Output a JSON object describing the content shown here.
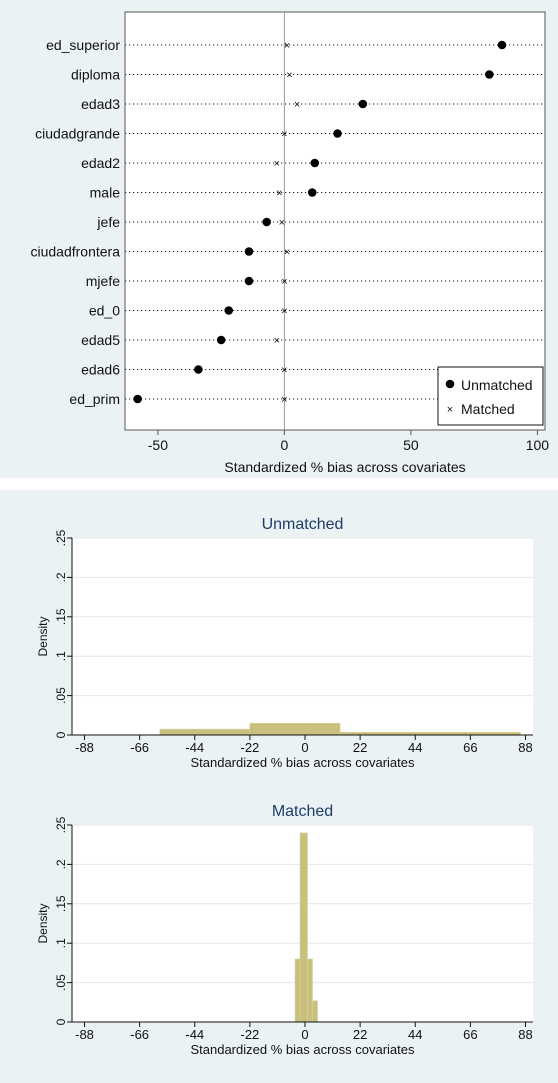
{
  "chart_data": [
    {
      "type": "scatter",
      "subtype": "dot-plot",
      "xlabel": "Standardized % bias across covariates",
      "ylabel": "",
      "xlim": [
        -63,
        103
      ],
      "xticks": [
        "-50",
        "0",
        "50",
        "100"
      ],
      "reference_line_x": 0,
      "categories": [
        "ed_superior",
        "diploma",
        "edad3",
        "ciudadgrande",
        "edad2",
        "male",
        "jefe",
        "ciudadfrontera",
        "mjefe",
        "ed_0",
        "edad5",
        "edad6",
        "ed_prim"
      ],
      "series": [
        {
          "name": "Unmatched",
          "marker": "filled-circle",
          "values": [
            86,
            81,
            31,
            21,
            12,
            11,
            -7,
            -14,
            -14,
            -22,
            -25,
            -34,
            -58
          ]
        },
        {
          "name": "Matched",
          "marker": "x",
          "values": [
            1,
            2,
            5,
            0,
            -3,
            -2,
            -1,
            1,
            0,
            0,
            -3,
            0,
            0
          ]
        }
      ],
      "legend_position": "bottom-right",
      "grid": "dotted horizontal lines"
    },
    {
      "type": "bar",
      "subtype": "histogram",
      "title": "Unmatched",
      "xlabel": "Standardized % bias across covariates",
      "ylabel": "Density",
      "xlim": [
        -93,
        91
      ],
      "ylim": [
        0,
        0.25
      ],
      "xticks": [
        "-88",
        "-66",
        "-44",
        "-22",
        "0",
        "22",
        "44",
        "66",
        "88"
      ],
      "yticks": [
        "0",
        ".05",
        ".1",
        ".15",
        ".2",
        ".25"
      ],
      "bins": [
        {
          "from": -58,
          "to": -22,
          "density": 0.0075
        },
        {
          "from": -22,
          "to": 14,
          "density": 0.015
        },
        {
          "from": 14,
          "to": 86,
          "density": 0.0035
        }
      ],
      "bar_color": "#c9c07e",
      "grid": "horizontal"
    },
    {
      "type": "bar",
      "subtype": "histogram",
      "title": "Matched",
      "xlabel": "Standardized % bias across covariates",
      "ylabel": "Density",
      "xlim": [
        -93,
        91
      ],
      "ylim": [
        0,
        0.25
      ],
      "xticks": [
        "-88",
        "-66",
        "-44",
        "-22",
        "0",
        "22",
        "44",
        "66",
        "88"
      ],
      "yticks": [
        "0",
        ".05",
        ".1",
        ".15",
        ".2",
        ".25"
      ],
      "bins": [
        {
          "from": -4,
          "to": -2,
          "density": 0.08
        },
        {
          "from": -2,
          "to": 1,
          "density": 0.24
        },
        {
          "from": 1,
          "to": 3,
          "density": 0.08
        },
        {
          "from": 3,
          "to": 5,
          "density": 0.027
        }
      ],
      "bar_color": "#c9c07e",
      "grid": "horizontal"
    }
  ]
}
